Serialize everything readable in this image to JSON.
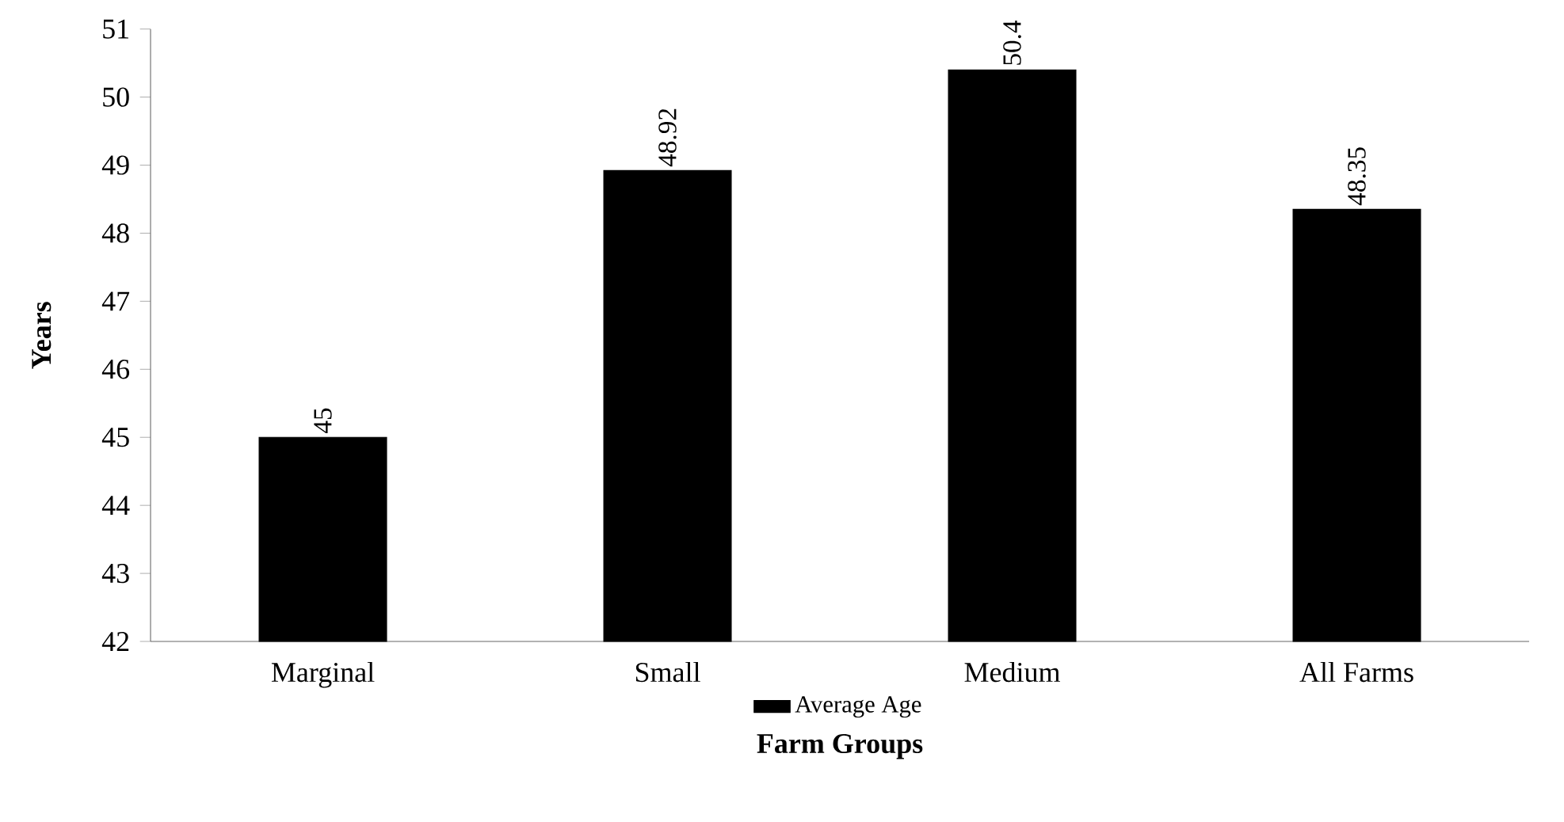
{
  "chart_data": {
    "type": "bar",
    "xlabel": "Farm Groups",
    "ylabel": "Years",
    "categories": [
      "Marginal",
      "Small",
      "Medium",
      "All Farms"
    ],
    "series": [
      {
        "name": "Average Age",
        "color": "#000000",
        "values": [
          45,
          48.92,
          50.4,
          48.35
        ]
      }
    ],
    "ylim": [
      42,
      51
    ],
    "yticks": [
      42,
      43,
      44,
      45,
      46,
      47,
      48,
      49,
      50,
      51
    ],
    "data_labels": true,
    "legend": "bottom",
    "grid": false
  }
}
